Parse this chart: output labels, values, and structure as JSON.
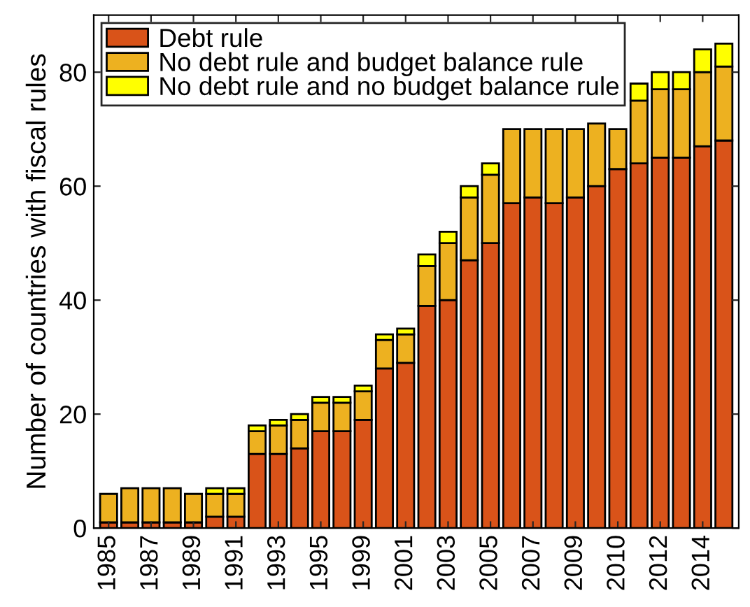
{
  "chart_data": {
    "type": "bar",
    "stacked": true,
    "ylabel": "Number of countries with fiscal rules",
    "categories": [
      "1985",
      null,
      "1987",
      null,
      "1989",
      null,
      "1991",
      null,
      "1993",
      null,
      "1995",
      null,
      "1999",
      null,
      "2001",
      null,
      "2003",
      null,
      "2005",
      null,
      "2007",
      null,
      "2009",
      null,
      "2010",
      null,
      "2012",
      null,
      "2014",
      null
    ],
    "series": [
      {
        "name": "Debt rule",
        "color": "#d95319",
        "values": [
          1,
          1,
          1,
          1,
          1,
          2,
          2,
          13,
          13,
          14,
          17,
          17,
          19,
          28,
          29,
          39,
          40,
          47,
          50,
          57,
          58,
          57,
          58,
          60,
          63,
          64,
          65,
          65,
          67,
          68
        ]
      },
      {
        "name": "No debt rule and budget balance rule",
        "color": "#edb120",
        "values": [
          5,
          6,
          6,
          6,
          5,
          4,
          4,
          4,
          5,
          5,
          5,
          5,
          5,
          5,
          5,
          7,
          10,
          11,
          12,
          13,
          12,
          13,
          12,
          11,
          7,
          11,
          12,
          12,
          13,
          13
        ]
      },
      {
        "name": "No debt rule and no budget balance rule",
        "color": "#ffff00",
        "values": [
          0,
          0,
          0,
          0,
          0,
          1,
          1,
          1,
          1,
          1,
          1,
          1,
          1,
          1,
          1,
          2,
          2,
          2,
          2,
          null,
          null,
          null,
          null,
          null,
          null,
          3,
          3,
          3,
          4,
          4
        ]
      }
    ],
    "ylim": [
      0,
      90
    ],
    "yticks": [
      0,
      20,
      40,
      60,
      80
    ],
    "legend": "top left",
    "grid": false
  }
}
